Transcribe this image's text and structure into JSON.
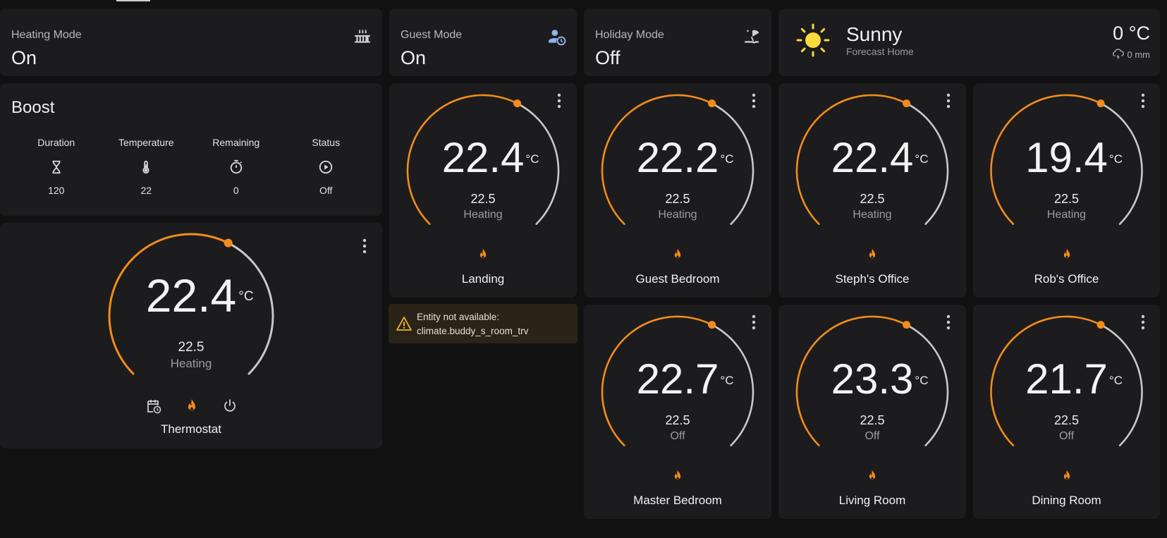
{
  "entities": {
    "heating_mode": {
      "name": "Heating Mode",
      "state": "On",
      "icon": "radiator-icon"
    },
    "guest_mode": {
      "name": "Guest Mode",
      "state": "On",
      "icon": "account-clock-icon"
    },
    "holiday_mode": {
      "name": "Holiday Mode",
      "state": "Off",
      "icon": "beach-icon"
    }
  },
  "weather": {
    "condition": "Sunny",
    "location": "Forecast Home",
    "temperature": "0 °C",
    "precipitation": "0 mm",
    "icon": "sun-icon"
  },
  "boost": {
    "title": "Boost",
    "columns": [
      {
        "header": "Duration",
        "value": "120",
        "icon": "hourglass-icon"
      },
      {
        "header": "Temperature",
        "value": "22",
        "icon": "thermometer-icon"
      },
      {
        "header": "Remaining",
        "value": "0",
        "icon": "timer-icon"
      },
      {
        "header": "Status",
        "value": "Off",
        "icon": "play-circle-icon"
      }
    ]
  },
  "thermostats": [
    {
      "name": "Thermostat",
      "current": "22.4",
      "unit": "°C",
      "target": "22.5",
      "action": "Heating",
      "setpoint_fraction": 0.6
    },
    {
      "name": "Landing",
      "current": "22.4",
      "unit": "°C",
      "target": "22.5",
      "action": "Heating",
      "setpoint_fraction": 0.6
    },
    {
      "name": "Guest Bedroom",
      "current": "22.2",
      "unit": "°C",
      "target": "22.5",
      "action": "Heating",
      "setpoint_fraction": 0.6
    },
    {
      "name": "Steph's Office",
      "current": "22.4",
      "unit": "°C",
      "target": "22.5",
      "action": "Heating",
      "setpoint_fraction": 0.6
    },
    {
      "name": "Rob's Office",
      "current": "19.4",
      "unit": "°C",
      "target": "22.5",
      "action": "Heating",
      "setpoint_fraction": 0.6
    },
    {
      "name": "Master Bedroom",
      "current": "22.7",
      "unit": "°C",
      "target": "22.5",
      "action": "Off",
      "setpoint_fraction": 0.6
    },
    {
      "name": "Living Room",
      "current": "23.3",
      "unit": "°C",
      "target": "22.5",
      "action": "Off",
      "setpoint_fraction": 0.6
    },
    {
      "name": "Dining Room",
      "current": "21.7",
      "unit": "°C",
      "target": "22.5",
      "action": "Off",
      "setpoint_fraction": 0.6
    }
  ],
  "warning": {
    "line1": "Entity not available:",
    "line2": "climate.buddy_s_room_trv",
    "icon": "alert-icon"
  },
  "thermostat_controls": [
    "calendar-clock-icon",
    "fire-icon",
    "power-icon"
  ],
  "colors": {
    "background": "#111111",
    "card": "#1c1c1e",
    "heat": "#f28c1c",
    "arc_inactive": "#c8c8c8",
    "sun": "#fdd93d",
    "warning": "#f0b429"
  }
}
